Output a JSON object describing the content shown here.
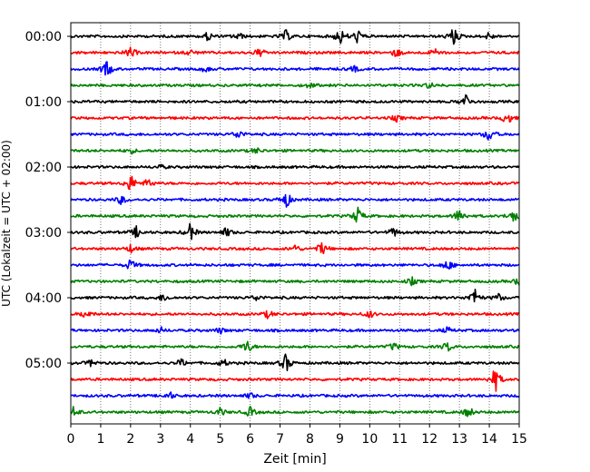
{
  "chart_data": {
    "type": "line",
    "title": "",
    "xlabel": "Zeit  [min]",
    "ylabel": "UTC (Lokalzeit = UTC + 02:00)",
    "xlim": [
      0,
      15
    ],
    "x_ticks": [
      0,
      1,
      2,
      3,
      4,
      5,
      6,
      7,
      8,
      9,
      10,
      11,
      12,
      13,
      14,
      15
    ],
    "y_tick_labels": [
      "00:00",
      "01:00",
      "02:00",
      "03:00",
      "04:00",
      "05:00"
    ],
    "grid": "vertical dotted lines at each minute",
    "trace_interval_min": 15,
    "trace_colors": [
      "#000000",
      "#ff0000",
      "#0000ff",
      "#008000"
    ],
    "traces": [
      {
        "start": "00:00",
        "color": "#000000",
        "events": [
          [
            4.6,
            0.5
          ],
          [
            5.6,
            0.4
          ],
          [
            7.2,
            0.6
          ],
          [
            9.0,
            0.9
          ],
          [
            9.6,
            0.7
          ],
          [
            12.8,
            1.0
          ],
          [
            14.0,
            0.4
          ]
        ]
      },
      {
        "start": "00:15",
        "color": "#ff0000",
        "events": [
          [
            2.0,
            0.6
          ],
          [
            4.0,
            0.3
          ],
          [
            6.3,
            0.5
          ],
          [
            10.9,
            0.5
          ],
          [
            12.2,
            0.4
          ]
        ]
      },
      {
        "start": "00:30",
        "color": "#0000ff",
        "events": [
          [
            1.2,
            0.9
          ],
          [
            4.5,
            0.3
          ],
          [
            9.5,
            0.3
          ]
        ]
      },
      {
        "start": "00:45",
        "color": "#008000",
        "events": [
          [
            8.0,
            0.3
          ],
          [
            12.0,
            0.3
          ]
        ]
      },
      {
        "start": "01:00",
        "color": "#000000",
        "events": [
          [
            13.2,
            0.8
          ]
        ]
      },
      {
        "start": "01:15",
        "color": "#ff0000",
        "events": [
          [
            10.9,
            0.3
          ],
          [
            14.6,
            0.7
          ]
        ]
      },
      {
        "start": "01:30",
        "color": "#0000ff",
        "events": [
          [
            5.6,
            0.5
          ],
          [
            14.0,
            0.8
          ]
        ]
      },
      {
        "start": "01:45",
        "color": "#008000",
        "events": [
          [
            2.0,
            0.3
          ],
          [
            6.2,
            0.3
          ]
        ]
      },
      {
        "start": "02:00",
        "color": "#000000",
        "events": [
          [
            3.0,
            0.2
          ]
        ]
      },
      {
        "start": "02:15",
        "color": "#ff0000",
        "events": [
          [
            2.0,
            1.0
          ],
          [
            2.6,
            0.5
          ]
        ]
      },
      {
        "start": "02:30",
        "color": "#0000ff",
        "events": [
          [
            1.7,
            0.5
          ],
          [
            7.2,
            0.9
          ]
        ]
      },
      {
        "start": "02:45",
        "color": "#008000",
        "events": [
          [
            9.6,
            0.9
          ],
          [
            13.0,
            0.8
          ],
          [
            14.8,
            0.7
          ]
        ]
      },
      {
        "start": "03:00",
        "color": "#000000",
        "events": [
          [
            2.2,
            0.6
          ],
          [
            4.0,
            0.9
          ],
          [
            5.2,
            0.5
          ],
          [
            10.8,
            0.5
          ]
        ]
      },
      {
        "start": "03:15",
        "color": "#ff0000",
        "events": [
          [
            2.0,
            0.4
          ],
          [
            7.5,
            0.4
          ],
          [
            8.4,
            0.7
          ]
        ]
      },
      {
        "start": "03:30",
        "color": "#0000ff",
        "events": [
          [
            2.0,
            0.6
          ],
          [
            12.6,
            0.6
          ]
        ]
      },
      {
        "start": "03:45",
        "color": "#008000",
        "events": [
          [
            11.4,
            0.4
          ],
          [
            15.0,
            0.5
          ]
        ]
      },
      {
        "start": "04:00",
        "color": "#000000",
        "events": [
          [
            3.1,
            0.4
          ],
          [
            6.2,
            0.3
          ],
          [
            13.5,
            1.0
          ],
          [
            14.3,
            0.4
          ]
        ]
      },
      {
        "start": "04:15",
        "color": "#ff0000",
        "events": [
          [
            0.5,
            0.5
          ],
          [
            6.6,
            0.4
          ],
          [
            10.0,
            0.4
          ]
        ]
      },
      {
        "start": "04:30",
        "color": "#0000ff",
        "events": [
          [
            3.0,
            0.3
          ],
          [
            5.0,
            0.3
          ],
          [
            12.6,
            0.3
          ]
        ]
      },
      {
        "start": "04:45",
        "color": "#008000",
        "events": [
          [
            5.9,
            0.7
          ],
          [
            10.8,
            0.4
          ],
          [
            12.6,
            0.5
          ]
        ]
      },
      {
        "start": "05:00",
        "color": "#000000",
        "events": [
          [
            0.7,
            0.4
          ],
          [
            3.7,
            0.4
          ],
          [
            5.1,
            0.4
          ],
          [
            7.2,
            1.0
          ]
        ]
      },
      {
        "start": "05:15",
        "color": "#ff0000",
        "events": [
          [
            14.2,
            1.3
          ]
        ]
      },
      {
        "start": "05:30",
        "color": "#0000ff",
        "events": [
          [
            3.3,
            0.4
          ],
          [
            6.0,
            0.3
          ]
        ]
      },
      {
        "start": "05:45",
        "color": "#008000",
        "events": [
          [
            0.1,
            0.6
          ],
          [
            5.0,
            0.4
          ],
          [
            6.0,
            0.5
          ],
          [
            13.3,
            0.6
          ]
        ]
      }
    ]
  }
}
